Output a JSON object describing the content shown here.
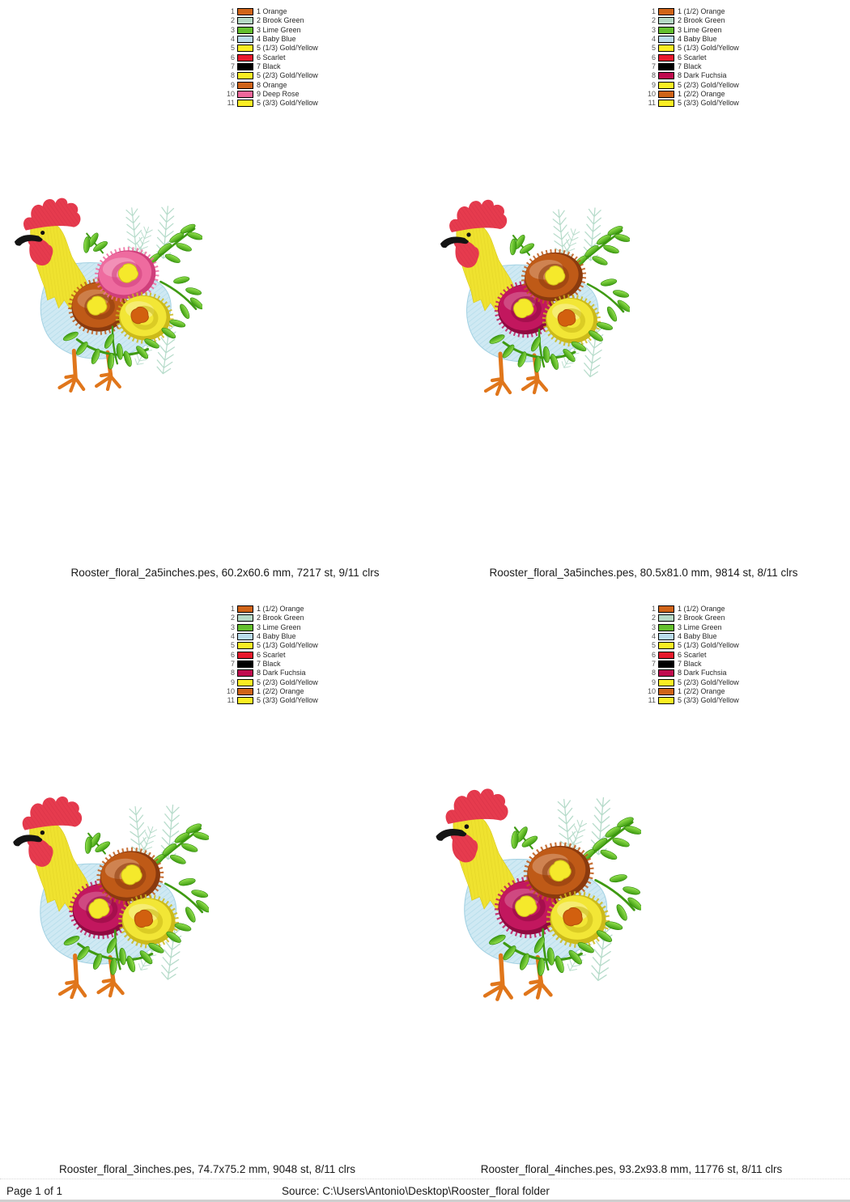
{
  "page": {
    "footer_left": "Page 1 of 1",
    "footer_source": "Source: C:\\Users\\Antonio\\Desktop\\Rooster_floral folder"
  },
  "designs": [
    {
      "caption": "Rooster_floral_2a5inches.pes, 60.2x60.6 mm, 7217 st, 9/11 clrs",
      "variant": "a",
      "legend": [
        {
          "n": 1,
          "color": "#d06418",
          "label": "1 Orange"
        },
        {
          "n": 2,
          "color": "#b5d9c5",
          "label": "2 Brook Green"
        },
        {
          "n": 3,
          "color": "#64c02e",
          "label": "3 Lime Green"
        },
        {
          "n": 4,
          "color": "#badcec",
          "label": "4 Baby Blue"
        },
        {
          "n": 5,
          "color": "#fbee23",
          "label": "5 (1/3) Gold/Yellow"
        },
        {
          "n": 6,
          "color": "#e8192c",
          "label": "6 Scarlet"
        },
        {
          "n": 7,
          "color": "#000000",
          "label": "7 Black"
        },
        {
          "n": 8,
          "color": "#fbee23",
          "label": "5 (2/3) Gold/Yellow"
        },
        {
          "n": 9,
          "color": "#d06418",
          "label": "8 Orange"
        },
        {
          "n": 10,
          "color": "#f0679b",
          "label": "9 Deep Rose"
        },
        {
          "n": 11,
          "color": "#fbee23",
          "label": "5 (3/3) Gold/Yellow"
        }
      ]
    },
    {
      "caption": "Rooster_floral_3a5inches.pes, 80.5x81.0 mm, 9814 st, 8/11 clrs",
      "variant": "b",
      "legend": [
        {
          "n": 1,
          "color": "#d06418",
          "label": "1 (1/2) Orange"
        },
        {
          "n": 2,
          "color": "#b5d9c5",
          "label": "2 Brook Green"
        },
        {
          "n": 3,
          "color": "#64c02e",
          "label": "3 Lime Green"
        },
        {
          "n": 4,
          "color": "#badcec",
          "label": "4 Baby Blue"
        },
        {
          "n": 5,
          "color": "#fbee23",
          "label": "5 (1/3) Gold/Yellow"
        },
        {
          "n": 6,
          "color": "#e8192c",
          "label": "6 Scarlet"
        },
        {
          "n": 7,
          "color": "#000000",
          "label": "7 Black"
        },
        {
          "n": 8,
          "color": "#c00b4f",
          "label": "8 Dark Fuchsia"
        },
        {
          "n": 9,
          "color": "#fbee23",
          "label": "5 (2/3) Gold/Yellow"
        },
        {
          "n": 10,
          "color": "#d06418",
          "label": "1 (2/2) Orange"
        },
        {
          "n": 11,
          "color": "#fbee23",
          "label": "5 (3/3) Gold/Yellow"
        }
      ]
    },
    {
      "caption": "Rooster_floral_3inches.pes, 74.7x75.2 mm, 9048 st, 8/11 clrs",
      "variant": "b",
      "legend": [
        {
          "n": 1,
          "color": "#d06418",
          "label": "1 (1/2) Orange"
        },
        {
          "n": 2,
          "color": "#b5d9c5",
          "label": "2 Brook Green"
        },
        {
          "n": 3,
          "color": "#64c02e",
          "label": "3 Lime Green"
        },
        {
          "n": 4,
          "color": "#badcec",
          "label": "4 Baby Blue"
        },
        {
          "n": 5,
          "color": "#fbee23",
          "label": "5 (1/3) Gold/Yellow"
        },
        {
          "n": 6,
          "color": "#e8192c",
          "label": "6 Scarlet"
        },
        {
          "n": 7,
          "color": "#000000",
          "label": "7 Black"
        },
        {
          "n": 8,
          "color": "#c00b4f",
          "label": "8 Dark Fuchsia"
        },
        {
          "n": 9,
          "color": "#fbee23",
          "label": "5 (2/3) Gold/Yellow"
        },
        {
          "n": 10,
          "color": "#d06418",
          "label": "1 (2/2) Orange"
        },
        {
          "n": 11,
          "color": "#fbee23",
          "label": "5 (3/3) Gold/Yellow"
        }
      ]
    },
    {
      "caption": "Rooster_floral_4inches.pes, 93.2x93.8 mm, 11776 st, 8/11 clrs",
      "variant": "b",
      "legend": [
        {
          "n": 1,
          "color": "#d06418",
          "label": "1 (1/2) Orange"
        },
        {
          "n": 2,
          "color": "#b5d9c5",
          "label": "2 Brook Green"
        },
        {
          "n": 3,
          "color": "#64c02e",
          "label": "3 Lime Green"
        },
        {
          "n": 4,
          "color": "#badcec",
          "label": "4 Baby Blue"
        },
        {
          "n": 5,
          "color": "#fbee23",
          "label": "5 (1/3) Gold/Yellow"
        },
        {
          "n": 6,
          "color": "#e8192c",
          "label": "6 Scarlet"
        },
        {
          "n": 7,
          "color": "#000000",
          "label": "7 Black"
        },
        {
          "n": 8,
          "color": "#c00b4f",
          "label": "8 Dark Fuchsia"
        },
        {
          "n": 9,
          "color": "#fbee23",
          "label": "5 (2/3) Gold/Yellow"
        },
        {
          "n": 10,
          "color": "#d06418",
          "label": "1 (2/2) Orange"
        },
        {
          "n": 11,
          "color": "#fbee23",
          "label": "5 (3/3) Gold/Yellow"
        }
      ]
    }
  ],
  "colors": {
    "variants": {
      "a": {
        "flower_top": "#ee6b9f",
        "flower_top_dark": "#cf3e7b",
        "flower_left": "#bf5a17",
        "flower_left_dark": "#8a3a0e"
      },
      "b": {
        "flower_top": "#bf5a17",
        "flower_top_dark": "#8a3a0e",
        "flower_left": "#c2175e",
        "flower_left_dark": "#8f0a40"
      }
    }
  }
}
